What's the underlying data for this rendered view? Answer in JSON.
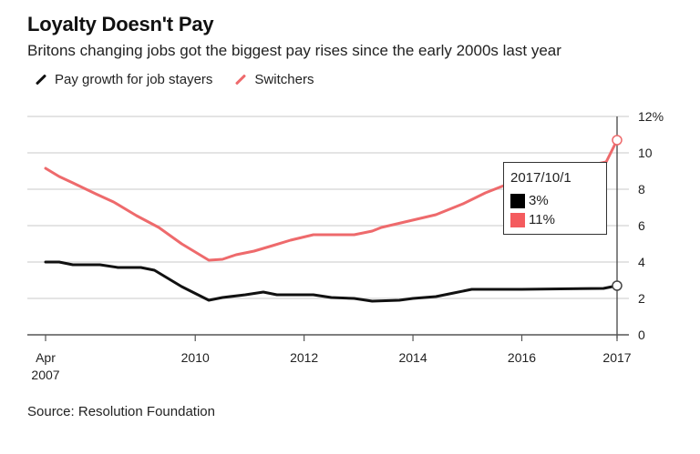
{
  "header": {
    "title": "Loyalty Doesn't Pay",
    "subtitle": "Britons changing jobs got the biggest pay rises since the early 2000s last year"
  },
  "legend": [
    {
      "label": "Pay growth for job stayers",
      "color": "#111111"
    },
    {
      "label": "Switchers",
      "color": "#ee6a6c"
    }
  ],
  "tooltip": {
    "date": "2017/10/1",
    "rows": [
      {
        "value": "3%",
        "color": "#000000"
      },
      {
        "value": "11%",
        "color": "#f45b5e"
      }
    ]
  },
  "source": "Source: Resolution Foundation",
  "chart_data": {
    "type": "line",
    "title": "Loyalty Doesn't Pay",
    "subtitle": "Britons changing jobs got the biggest pay rises since the early 2000s last year",
    "xlabel": "",
    "ylabel": "",
    "xlim": [
      2007.25,
      2017.75
    ],
    "ylim": [
      0,
      12
    ],
    "grid": true,
    "legend_position": "top-left",
    "y_ticks": [
      0,
      2,
      4,
      6,
      8,
      10,
      12
    ],
    "y_tick_labels": [
      "0",
      "2",
      "4",
      "6",
      "8",
      "10",
      "12%"
    ],
    "x_ticks": [
      {
        "x": 2007.25,
        "label": [
          "Apr",
          "2007"
        ]
      },
      {
        "x": 2010,
        "label": [
          "2010"
        ]
      },
      {
        "x": 2012,
        "label": [
          "2012"
        ]
      },
      {
        "x": 2014,
        "label": [
          "2014"
        ]
      },
      {
        "x": 2016,
        "label": [
          "2016"
        ]
      },
      {
        "x": 2017.75,
        "label": [
          "2017"
        ]
      }
    ],
    "crosshair_x": 2017.75,
    "series": [
      {
        "name": "Pay growth for job stayers",
        "color": "#111111",
        "x": [
          2007.25,
          2007.5,
          2007.75,
          2008.25,
          2008.58,
          2009.0,
          2009.25,
          2009.75,
          2010.25,
          2010.5,
          2010.92,
          2011.25,
          2011.5,
          2012.17,
          2012.5,
          2012.92,
          2013.25,
          2013.75,
          2014.0,
          2014.42,
          2014.75,
          2015.08,
          2016.0,
          2017.5,
          2017.75
        ],
        "values": [
          4.0,
          4.0,
          3.85,
          3.85,
          3.7,
          3.7,
          3.55,
          2.65,
          1.9,
          2.05,
          2.2,
          2.35,
          2.2,
          2.2,
          2.05,
          2.0,
          1.85,
          1.9,
          2.0,
          2.1,
          2.3,
          2.5,
          2.5,
          2.55,
          2.7
        ]
      },
      {
        "name": "Switchers",
        "color": "#ee6a6c",
        "x": [
          2007.25,
          2007.5,
          2007.75,
          2008.17,
          2008.5,
          2008.92,
          2009.33,
          2009.75,
          2010.25,
          2010.5,
          2010.75,
          2011.08,
          2011.42,
          2011.75,
          2012.17,
          2012.92,
          2013.25,
          2013.42,
          2013.92,
          2014.42,
          2014.92,
          2015.33,
          2015.67,
          2016.0,
          2016.75,
          2017.55,
          2017.75
        ],
        "values": [
          9.15,
          8.7,
          8.35,
          7.75,
          7.3,
          6.55,
          5.9,
          5.0,
          4.1,
          4.15,
          4.4,
          4.6,
          4.9,
          5.2,
          5.5,
          5.5,
          5.7,
          5.9,
          6.25,
          6.6,
          7.2,
          7.8,
          8.2,
          8.6,
          9.0,
          9.5,
          10.7
        ]
      }
    ]
  }
}
